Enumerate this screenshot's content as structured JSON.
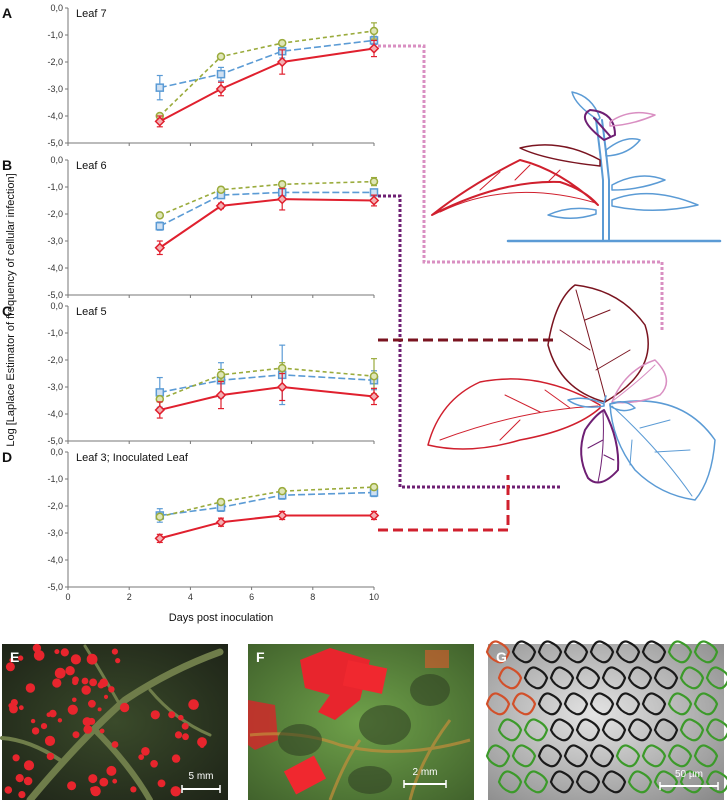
{
  "chart_data": [
    {
      "type": "line",
      "panel": "A",
      "title": "Leaf 7",
      "x": [
        3,
        5,
        7,
        10
      ],
      "ylim": [
        -5,
        0
      ],
      "xlim": [
        0,
        10
      ],
      "series": [
        {
          "color": "#9aab3c",
          "values": [
            -4.0,
            -1.8,
            -1.3,
            -0.85
          ],
          "err": [
            0.08,
            0.08,
            0.1,
            0.3
          ]
        },
        {
          "color": "#5b9bd5",
          "values": [
            -2.95,
            -2.45,
            -1.6,
            -1.2
          ],
          "err": [
            0.45,
            0.25,
            0.25,
            0.15
          ]
        },
        {
          "color": "#e0202e",
          "values": [
            -4.2,
            -3.0,
            -2.0,
            -1.5
          ],
          "err": [
            0.2,
            0.25,
            0.45,
            0.3
          ]
        }
      ]
    },
    {
      "type": "line",
      "panel": "B",
      "title": "Leaf 6",
      "x": [
        3,
        5,
        7,
        10
      ],
      "ylim": [
        -5,
        0
      ],
      "xlim": [
        0,
        10
      ],
      "series": [
        {
          "color": "#9aab3c",
          "values": [
            -2.05,
            -1.1,
            -0.9,
            -0.8
          ],
          "err": [
            0.08,
            0.1,
            0.1,
            0.15
          ]
        },
        {
          "color": "#5b9bd5",
          "values": [
            -2.45,
            -1.3,
            -1.2,
            -1.2
          ],
          "err": [
            0.15,
            0.1,
            0.1,
            0.1
          ]
        },
        {
          "color": "#e0202e",
          "values": [
            -3.25,
            -1.7,
            -1.45,
            -1.5
          ],
          "err": [
            0.25,
            0.1,
            0.4,
            0.2
          ]
        }
      ]
    },
    {
      "type": "line",
      "panel": "C",
      "title": "Leaf 5",
      "x": [
        3,
        5,
        7,
        10
      ],
      "ylim": [
        -5,
        0
      ],
      "xlim": [
        0,
        10
      ],
      "series": [
        {
          "color": "#9aab3c",
          "values": [
            -3.45,
            -2.55,
            -2.3,
            -2.6
          ],
          "err": [
            0.1,
            0.2,
            0.2,
            0.65
          ]
        },
        {
          "color": "#5b9bd5",
          "values": [
            -3.2,
            -2.75,
            -2.55,
            -2.75
          ],
          "err": [
            0.55,
            0.65,
            1.1,
            0.35
          ]
        },
        {
          "color": "#e0202e",
          "values": [
            -3.85,
            -3.3,
            -3.0,
            -3.35
          ],
          "err": [
            0.3,
            0.5,
            0.5,
            0.3
          ]
        }
      ]
    },
    {
      "type": "line",
      "panel": "D",
      "title": "Leaf 3; Inoculated Leaf",
      "x": [
        3,
        5,
        7,
        10
      ],
      "ylim": [
        -5,
        0
      ],
      "xlim": [
        0,
        10
      ],
      "xlabel": "Days post inoculation",
      "series": [
        {
          "color": "#9aab3c",
          "values": [
            -2.4,
            -1.85,
            -1.45,
            -1.3
          ],
          "err": [
            0.1,
            0.1,
            0.1,
            0.1
          ]
        },
        {
          "color": "#5b9bd5",
          "values": [
            -2.35,
            -2.05,
            -1.6,
            -1.5
          ],
          "err": [
            0.25,
            0.15,
            0.15,
            0.15
          ]
        },
        {
          "color": "#e0202e",
          "values": [
            -3.2,
            -2.6,
            -2.35,
            -2.35
          ],
          "err": [
            0.15,
            0.15,
            0.15,
            0.15
          ]
        }
      ]
    }
  ],
  "axes": {
    "y_ticks": [
      "0,0",
      "-1,0",
      "-2,0",
      "-3,0",
      "-4,0",
      "-5,0"
    ],
    "x_ticks": [
      "0",
      "2",
      "4",
      "6",
      "8",
      "10"
    ],
    "ylabel": "Log [Laplace Estimator of frequency of cellular infection]",
    "xlabel": "Days post inoculation"
  },
  "colors": {
    "leaf3": "#d0202e",
    "leaf5": "#7a1420",
    "leaf6": "#6e1f73",
    "leaf7": "#d98fc2",
    "other": "#5b9bd5"
  },
  "photos": [
    {
      "letter": "E",
      "scale": "5 mm"
    },
    {
      "letter": "F",
      "scale": "2 mm"
    },
    {
      "letter": "G",
      "scale": "50 µm"
    }
  ]
}
